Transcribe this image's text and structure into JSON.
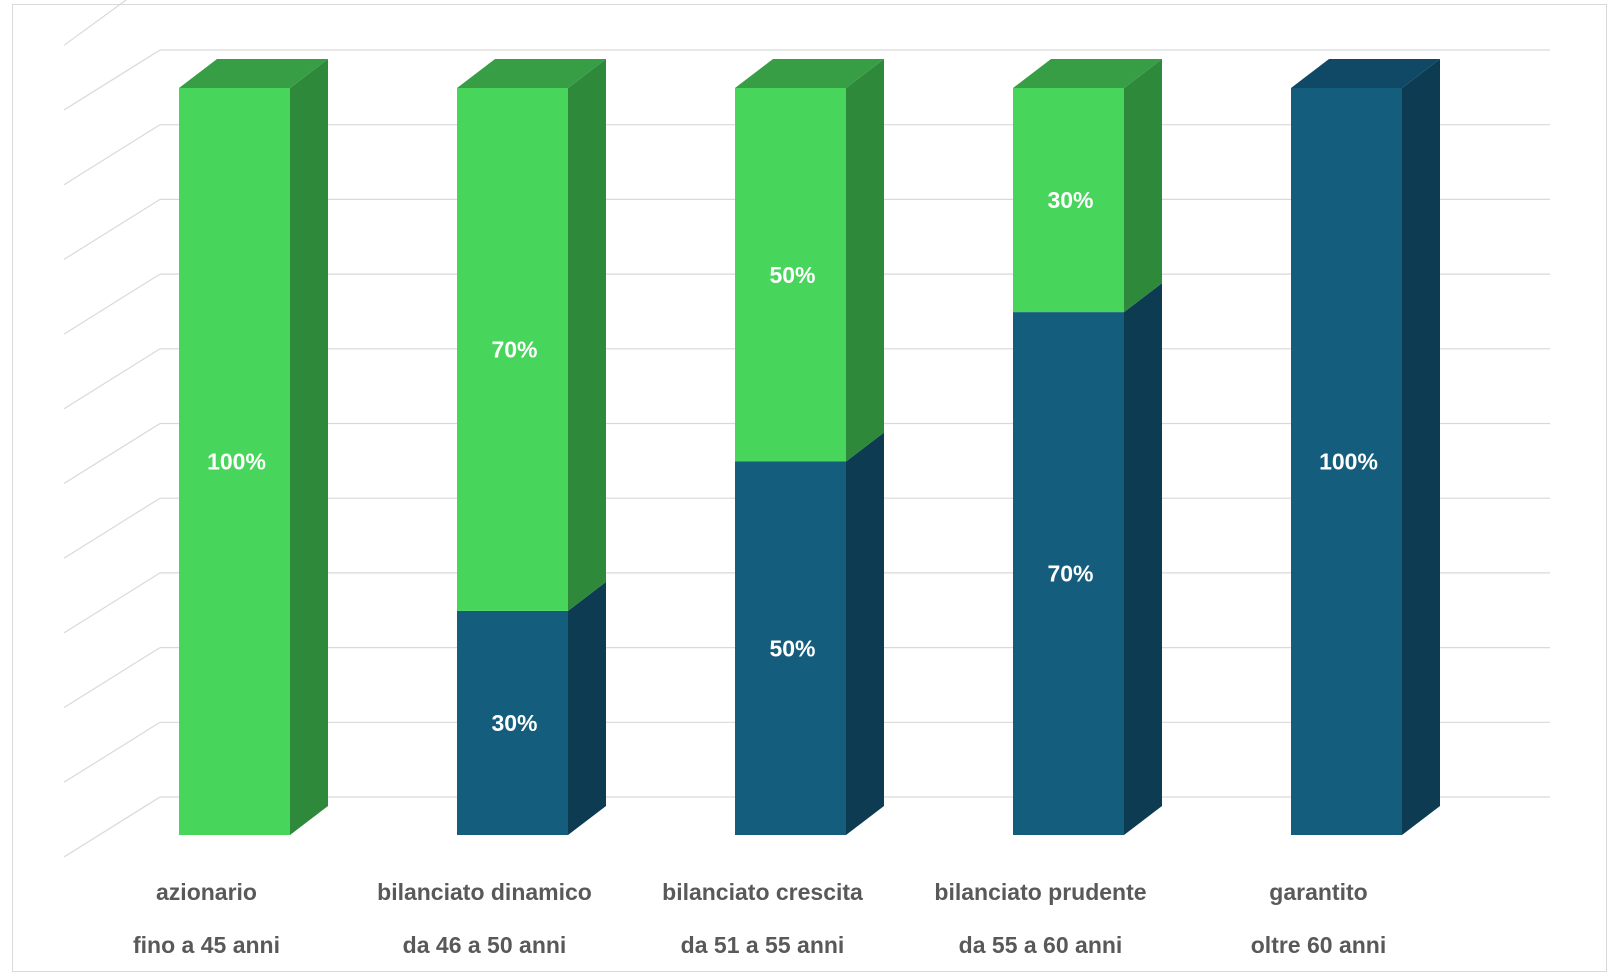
{
  "chart_data": {
    "type": "bar",
    "stacked": true,
    "three_d": true,
    "categories": [
      [
        "azionario",
        "fino a 45 anni"
      ],
      [
        "bilanciato dinamico",
        "da 46 a 50 anni"
      ],
      [
        "bilanciato crescita",
        "da 51 a 55 anni"
      ],
      [
        "bilanciato prudente",
        "da 55 a 60 anni"
      ],
      [
        "garantito",
        "oltre 60 anni"
      ]
    ],
    "series": [
      {
        "values": [
          0,
          30,
          50,
          70,
          100
        ],
        "labels": [
          "",
          "30%",
          "50%",
          "70%",
          "100%"
        ],
        "color": "#155d7d",
        "side_color": "#0d3c52",
        "top_color": "#0f4966"
      },
      {
        "values": [
          100,
          70,
          50,
          30,
          0
        ],
        "labels": [
          "100%",
          "70%",
          "50%",
          "30%",
          ""
        ],
        "color": "#48d55b",
        "side_color": "#2e8a3a",
        "top_color": "#389e45"
      }
    ],
    "ylim": [
      0,
      100
    ],
    "y_axis_labels_shown": false,
    "grid": true,
    "legend": "none"
  }
}
